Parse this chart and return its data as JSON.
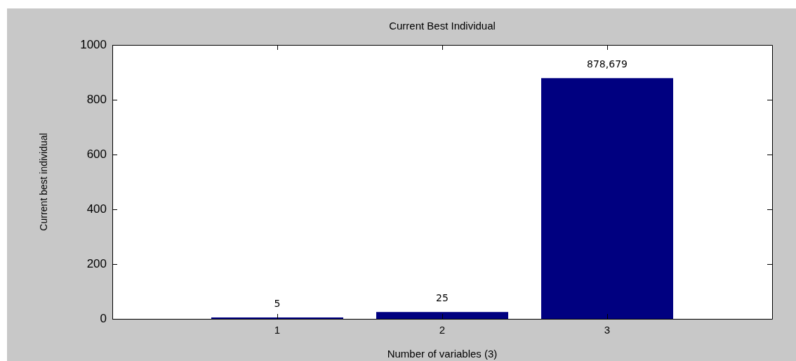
{
  "chart_data": {
    "type": "bar",
    "title": "Current Best Individual",
    "xlabel": "Number of variables (3)",
    "ylabel": "Current best individual",
    "x": [
      1,
      2,
      3
    ],
    "values": [
      5,
      25,
      878.679
    ],
    "value_labels": [
      "5",
      "25",
      null
    ],
    "annotations": [
      {
        "text": "878,679",
        "x": 3,
        "y": 878.679
      }
    ],
    "color": "#000080",
    "xlim": [
      0,
      4
    ],
    "xticks": [
      1,
      2,
      3
    ],
    "ylim": [
      0,
      1000
    ],
    "yticks": [
      0,
      200,
      400,
      600,
      800,
      1000
    ],
    "grid": false,
    "legend": false
  }
}
